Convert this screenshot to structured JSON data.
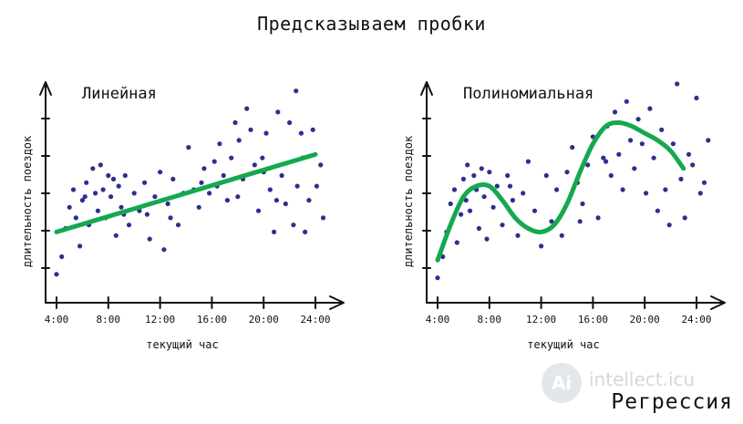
{
  "title": "Предсказываем пробки",
  "watermark": {
    "logo": "Ai",
    "text": "intellect.icu",
    "caption": "Регрессия"
  },
  "colors": {
    "points": "#2e2e8f",
    "fit": "#15a84e",
    "axis": "#111111"
  },
  "chart_data": [
    {
      "type": "scatter",
      "title": "Линейная",
      "xlabel": "текущий час",
      "ylabel": "длительность поездок",
      "xticks": [
        "4:00",
        "8:00",
        "12:00",
        "16:00",
        "20:00",
        "24:00"
      ],
      "xlim": [
        4,
        26
      ],
      "ylim": [
        0,
        6
      ],
      "grid": false,
      "fit": {
        "type": "linear",
        "x": [
          4,
          24
        ],
        "y": [
          1.8,
          4.0
        ]
      },
      "points": [
        [
          4.0,
          0.6
        ],
        [
          4.4,
          1.1
        ],
        [
          4.7,
          1.9
        ],
        [
          5.0,
          2.5
        ],
        [
          5.3,
          3.0
        ],
        [
          5.5,
          2.2
        ],
        [
          5.8,
          1.4
        ],
        [
          6.0,
          2.7
        ],
        [
          6.3,
          3.2
        ],
        [
          6.5,
          2.0
        ],
        [
          6.8,
          3.6
        ],
        [
          7.0,
          2.9
        ],
        [
          7.2,
          2.4
        ],
        [
          7.4,
          3.7
        ],
        [
          7.6,
          3.0
        ],
        [
          7.8,
          2.2
        ],
        [
          8.0,
          3.4
        ],
        [
          8.2,
          2.8
        ],
        [
          8.4,
          3.3
        ],
        [
          8.6,
          1.7
        ],
        [
          8.8,
          3.1
        ],
        [
          9.0,
          2.5
        ],
        [
          9.3,
          3.4
        ],
        [
          9.6,
          2.0
        ],
        [
          10.0,
          2.9
        ],
        [
          10.4,
          2.4
        ],
        [
          10.8,
          3.2
        ],
        [
          11.2,
          1.6
        ],
        [
          11.6,
          2.8
        ],
        [
          12.0,
          3.5
        ],
        [
          12.3,
          1.3
        ],
        [
          12.6,
          2.6
        ],
        [
          13.0,
          3.3
        ],
        [
          13.4,
          2.0
        ],
        [
          13.8,
          2.9
        ],
        [
          14.2,
          4.2
        ],
        [
          14.6,
          3.0
        ],
        [
          15.0,
          2.5
        ],
        [
          15.4,
          3.6
        ],
        [
          15.8,
          2.9
        ],
        [
          16.2,
          3.8
        ],
        [
          16.6,
          4.3
        ],
        [
          16.9,
          3.4
        ],
        [
          17.2,
          2.7
        ],
        [
          17.5,
          3.9
        ],
        [
          17.8,
          4.9
        ],
        [
          18.1,
          4.4
        ],
        [
          18.4,
          3.3
        ],
        [
          18.7,
          5.3
        ],
        [
          19.0,
          4.7
        ],
        [
          19.3,
          3.7
        ],
        [
          19.6,
          2.4
        ],
        [
          19.9,
          3.9
        ],
        [
          20.2,
          4.6
        ],
        [
          20.5,
          3.0
        ],
        [
          20.8,
          1.8
        ],
        [
          21.1,
          5.2
        ],
        [
          21.4,
          3.4
        ],
        [
          21.7,
          2.6
        ],
        [
          22.0,
          4.9
        ],
        [
          22.3,
          2.0
        ],
        [
          22.6,
          3.1
        ],
        [
          22.9,
          4.6
        ],
        [
          23.2,
          1.8
        ],
        [
          23.5,
          2.7
        ],
        [
          23.8,
          4.7
        ],
        [
          24.1,
          3.1
        ],
        [
          24.4,
          3.7
        ],
        [
          22.5,
          5.8
        ],
        [
          20.0,
          3.5
        ],
        [
          12.8,
          2.2
        ],
        [
          9.2,
          2.3
        ],
        [
          6.2,
          2.8
        ],
        [
          11.0,
          2.3
        ],
        [
          15.2,
          3.2
        ],
        [
          16.4,
          3.1
        ],
        [
          18.0,
          2.8
        ],
        [
          21.0,
          2.7
        ],
        [
          23.0,
          3.9
        ],
        [
          24.6,
          2.2
        ]
      ]
    },
    {
      "type": "scatter",
      "title": "Полиномиальная",
      "xlabel": "текущий час",
      "ylabel": "длительность поездок",
      "xticks": [
        "4:00",
        "8:00",
        "12:00",
        "16:00",
        "20:00",
        "24:00"
      ],
      "xlim": [
        4,
        26
      ],
      "ylim": [
        0,
        6
      ],
      "grid": false,
      "fit": {
        "type": "polynomial",
        "x": [
          4,
          5,
          6,
          7,
          8,
          9,
          10,
          11,
          12,
          13,
          14,
          15,
          16,
          17,
          18,
          19,
          20,
          21,
          22,
          23
        ],
        "y": [
          1.0,
          2.0,
          2.8,
          3.1,
          3.1,
          2.7,
          2.2,
          1.9,
          1.8,
          2.0,
          2.6,
          3.5,
          4.3,
          4.8,
          4.9,
          4.8,
          4.6,
          4.4,
          4.1,
          3.6
        ]
      },
      "points": [
        [
          4.0,
          0.5
        ],
        [
          4.4,
          1.1
        ],
        [
          4.7,
          1.8
        ],
        [
          5.0,
          2.6
        ],
        [
          5.3,
          3.0
        ],
        [
          5.5,
          1.5
        ],
        [
          5.8,
          2.3
        ],
        [
          6.0,
          3.3
        ],
        [
          6.3,
          3.7
        ],
        [
          6.5,
          2.4
        ],
        [
          6.8,
          3.4
        ],
        [
          7.0,
          3.0
        ],
        [
          7.2,
          1.9
        ],
        [
          7.4,
          3.6
        ],
        [
          7.6,
          2.8
        ],
        [
          7.8,
          1.6
        ],
        [
          8.0,
          3.5
        ],
        [
          8.3,
          2.5
        ],
        [
          8.6,
          3.1
        ],
        [
          9.0,
          2.0
        ],
        [
          9.4,
          3.4
        ],
        [
          9.8,
          2.7
        ],
        [
          10.2,
          1.7
        ],
        [
          10.6,
          2.9
        ],
        [
          11.0,
          3.8
        ],
        [
          11.5,
          2.4
        ],
        [
          12.0,
          1.4
        ],
        [
          12.4,
          3.4
        ],
        [
          12.8,
          2.1
        ],
        [
          13.2,
          3.0
        ],
        [
          13.6,
          1.7
        ],
        [
          14.0,
          3.5
        ],
        [
          14.4,
          4.2
        ],
        [
          14.8,
          3.2
        ],
        [
          15.2,
          2.6
        ],
        [
          15.6,
          3.7
        ],
        [
          16.0,
          4.5
        ],
        [
          16.4,
          2.2
        ],
        [
          16.8,
          3.9
        ],
        [
          17.1,
          4.8
        ],
        [
          17.4,
          3.4
        ],
        [
          17.7,
          5.2
        ],
        [
          18.0,
          4.0
        ],
        [
          18.3,
          3.0
        ],
        [
          18.6,
          5.5
        ],
        [
          18.9,
          4.4
        ],
        [
          19.2,
          3.6
        ],
        [
          19.5,
          5.0
        ],
        [
          19.8,
          4.3
        ],
        [
          20.1,
          2.9
        ],
        [
          20.4,
          5.3
        ],
        [
          20.7,
          3.9
        ],
        [
          21.0,
          2.4
        ],
        [
          21.3,
          4.7
        ],
        [
          21.6,
          3.0
        ],
        [
          21.9,
          2.0
        ],
        [
          22.2,
          4.3
        ],
        [
          22.5,
          6.0
        ],
        [
          22.8,
          3.3
        ],
        [
          23.1,
          2.2
        ],
        [
          23.4,
          4.0
        ],
        [
          23.7,
          3.7
        ],
        [
          24.0,
          5.6
        ],
        [
          24.3,
          2.9
        ],
        [
          24.6,
          3.2
        ],
        [
          24.9,
          4.4
        ],
        [
          17.0,
          3.8
        ],
        [
          15.0,
          2.1
        ],
        [
          9.6,
          3.1
        ],
        [
          6.2,
          2.7
        ]
      ]
    }
  ]
}
